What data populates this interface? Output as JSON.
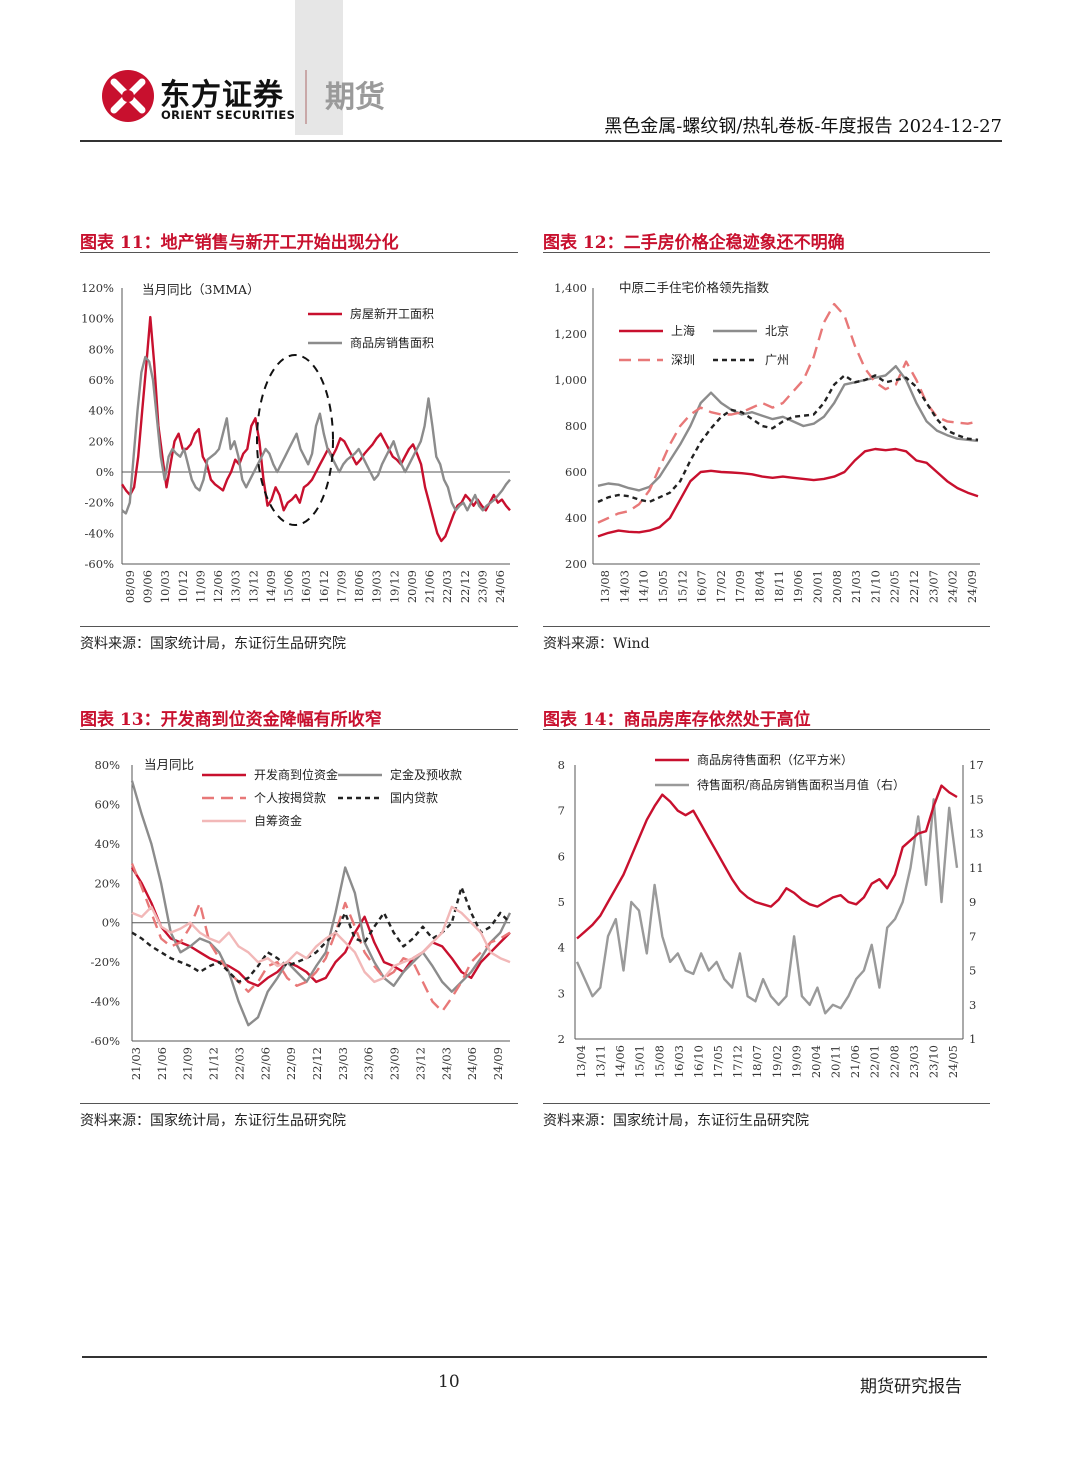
{
  "header": {
    "brand_cn": "东方证券",
    "brand_en": "ORIENT SECURITIES",
    "brand_division": "期货",
    "report_title": "黑色金属-螺纹钢/热轧卷板-年度报告 2024-12-27",
    "colors": {
      "accent": "#c8102e",
      "gray_bar": "#e6e6e6"
    }
  },
  "figures": [
    {
      "title": "图表 11：地产销售与新开工开始出现分化",
      "source": "资料来源：国家统计局，东证衍生品研究院"
    },
    {
      "title": "图表 12：二手房价格企稳迹象还不明确",
      "source": "资料来源：Wind"
    },
    {
      "title": "图表 13：开发商到位资金降幅有所收窄",
      "source": "资料来源：国家统计局，东证衍生品研究院"
    },
    {
      "title": "图表 14：商品房库存依然处于高位",
      "source": "资料来源：国家统计局，东证衍生品研究院"
    }
  ],
  "chart_data": [
    {
      "type": "line",
      "title": "当月同比（3MMA）",
      "x_ticks": [
        "08/09",
        "09/06",
        "10/03",
        "10/12",
        "11/09",
        "12/06",
        "13/03",
        "13/12",
        "14/09",
        "15/06",
        "16/03",
        "16/12",
        "17/09",
        "18/06",
        "19/03",
        "19/12",
        "20/09",
        "21/06",
        "22/03",
        "22/12",
        "23/09",
        "24/06"
      ],
      "ylim": [
        -60,
        120
      ],
      "y_ticks": [
        "120%",
        "100%",
        "80%",
        "60%",
        "40%",
        "20%",
        "0%",
        "-20%",
        "-40%",
        "-60%"
      ],
      "series": [
        {
          "name": "房屋新开工面积",
          "color": "#c8102e",
          "values": [
            -8,
            -12,
            -15,
            -10,
            10,
            40,
            70,
            101,
            70,
            30,
            10,
            -10,
            5,
            20,
            25,
            15,
            15,
            18,
            25,
            28,
            10,
            5,
            -5,
            -8,
            -10,
            -12,
            -5,
            0,
            8,
            5,
            12,
            15,
            30,
            35,
            20,
            -5,
            -22,
            -18,
            -10,
            -15,
            -25,
            -20,
            -18,
            -15,
            -20,
            -10,
            -8,
            -5,
            0,
            5,
            10,
            15,
            10,
            15,
            22,
            20,
            15,
            10,
            5,
            8,
            12,
            15,
            18,
            22,
            25,
            20,
            15,
            10,
            8,
            5,
            10,
            15,
            18,
            12,
            5,
            -10,
            -20,
            -30,
            -40,
            -45,
            -42,
            -35,
            -28,
            -22,
            -20,
            -15,
            -18,
            -22,
            -18,
            -22,
            -25,
            -20,
            -15,
            -20,
            -18,
            -22,
            -25
          ]
        },
        {
          "name": "商品房销售面积",
          "color": "#8c8c8c",
          "values": [
            -25,
            -27,
            -20,
            10,
            40,
            65,
            75,
            72,
            60,
            35,
            10,
            -5,
            10,
            15,
            12,
            10,
            15,
            5,
            -5,
            -10,
            -12,
            -5,
            8,
            10,
            12,
            15,
            25,
            35,
            15,
            20,
            10,
            -5,
            -10,
            -5,
            0,
            5,
            10,
            15,
            12,
            5,
            0,
            5,
            10,
            15,
            20,
            25,
            15,
            10,
            5,
            12,
            30,
            38,
            25,
            15,
            10,
            5,
            0,
            5,
            8,
            10,
            12,
            15,
            10,
            5,
            0,
            -5,
            -2,
            5,
            10,
            15,
            20,
            12,
            5,
            0,
            5,
            10,
            15,
            20,
            30,
            48,
            30,
            10,
            5,
            -5,
            -10,
            -20,
            -25,
            -22,
            -20,
            -25,
            -20,
            -15,
            -22,
            -25,
            -22,
            -20,
            -18,
            -15,
            -12,
            -8,
            -5
          ]
        }
      ]
    },
    {
      "type": "line",
      "title": "中原二手住宅价格领先指数",
      "x_ticks": [
        "13/08",
        "14/03",
        "14/10",
        "15/05",
        "15/12",
        "16/07",
        "17/02",
        "17/09",
        "18/04",
        "18/11",
        "19/06",
        "20/01",
        "20/08",
        "21/03",
        "21/10",
        "22/05",
        "22/12",
        "23/07",
        "24/02",
        "24/09"
      ],
      "ylim": [
        200,
        1400
      ],
      "y_ticks": [
        "1,400",
        "1,200",
        "1,000",
        "800",
        "600",
        "400",
        "200"
      ],
      "series": [
        {
          "name": "上海",
          "color": "#c8102e",
          "values": [
            320,
            335,
            345,
            340,
            338,
            345,
            360,
            400,
            480,
            560,
            600,
            605,
            600,
            598,
            595,
            590,
            580,
            575,
            580,
            575,
            570,
            565,
            570,
            580,
            600,
            650,
            690,
            700,
            695,
            700,
            690,
            650,
            640,
            600,
            560,
            530,
            510,
            495
          ]
        },
        {
          "name": "北京",
          "color": "#8c8c8c",
          "values": [
            540,
            550,
            545,
            530,
            520,
            535,
            580,
            650,
            720,
            800,
            900,
            945,
            900,
            870,
            850,
            860,
            845,
            830,
            840,
            820,
            800,
            810,
            840,
            900,
            980,
            990,
            1000,
            1010,
            1020,
            1060,
            1000,
            900,
            820,
            780,
            760,
            745,
            740,
            735
          ]
        },
        {
          "name": "深圳",
          "color": "#e87878",
          "values": [
            380,
            400,
            420,
            430,
            460,
            520,
            620,
            720,
            800,
            850,
            880,
            860,
            850,
            850,
            860,
            880,
            900,
            880,
            900,
            950,
            1000,
            1100,
            1250,
            1330,
            1280,
            1150,
            1050,
            990,
            960,
            980,
            1080,
            1000,
            900,
            840,
            820,
            815,
            810,
            820
          ]
        },
        {
          "name": "广州",
          "color": "#222222",
          "values": [
            470,
            490,
            500,
            495,
            480,
            470,
            490,
            510,
            560,
            650,
            730,
            790,
            840,
            870,
            860,
            830,
            800,
            790,
            820,
            840,
            845,
            850,
            900,
            980,
            1020,
            990,
            1000,
            1020,
            990,
            1000,
            1010,
            970,
            900,
            830,
            780,
            760,
            745,
            740
          ]
        }
      ]
    },
    {
      "type": "line",
      "title": "当月同比",
      "x_ticks": [
        "21/03",
        "21/06",
        "21/09",
        "21/12",
        "22/03",
        "22/06",
        "22/09",
        "22/12",
        "23/03",
        "23/06",
        "23/09",
        "23/12",
        "24/03",
        "24/06",
        "24/09"
      ],
      "ylim": [
        -60,
        80
      ],
      "y_ticks": [
        "80%",
        "60%",
        "40%",
        "20%",
        "0%",
        "-20%",
        "-40%",
        "-60%"
      ],
      "series": [
        {
          "name": "开发商到位资金",
          "color": "#c8102e",
          "values": [
            28,
            20,
            10,
            -2,
            -8,
            -10,
            -12,
            -15,
            -18,
            -20,
            -22,
            -25,
            -30,
            -32,
            -28,
            -25,
            -20,
            -22,
            -25,
            -30,
            -28,
            -20,
            -15,
            -5,
            3,
            -10,
            -20,
            -22,
            -25,
            -18,
            -15,
            -10,
            -12,
            -18,
            -25,
            -28,
            -20,
            -15,
            -10,
            -5
          ]
        },
        {
          "name": "定金及预收款",
          "color": "#8c8c8c",
          "values": [
            72,
            55,
            40,
            20,
            -5,
            -15,
            -12,
            -8,
            -10,
            -15,
            -25,
            -40,
            -52,
            -48,
            -35,
            -28,
            -20,
            -25,
            -30,
            -22,
            -15,
            5,
            28,
            15,
            -10,
            -20,
            -28,
            -32,
            -25,
            -20,
            -15,
            -22,
            -30,
            -35,
            -30,
            -25,
            -18,
            -10,
            -5,
            5
          ]
        },
        {
          "name": "个人按揭贷款",
          "color": "#e87878",
          "values": [
            30,
            18,
            5,
            -8,
            -12,
            -10,
            -2,
            10,
            -10,
            -18,
            -25,
            -30,
            -35,
            -30,
            -22,
            -20,
            -28,
            -32,
            -30,
            -25,
            -18,
            -5,
            10,
            -2,
            -15,
            -22,
            -28,
            -25,
            -18,
            -20,
            -30,
            -40,
            -45,
            -38,
            -30,
            -20,
            -15,
            -10,
            -8,
            -5
          ]
        },
        {
          "name": "国内贷款",
          "color": "#222222",
          "values": [
            -5,
            -8,
            -12,
            -15,
            -18,
            -20,
            -22,
            -25,
            -22,
            -20,
            -25,
            -30,
            -28,
            -22,
            -15,
            -18,
            -22,
            -20,
            -18,
            -15,
            -10,
            -5,
            5,
            -8,
            -10,
            -2,
            5,
            -5,
            -12,
            -8,
            -2,
            -8,
            -5,
            0,
            18,
            5,
            -5,
            -2,
            5,
            0
          ]
        },
        {
          "name": "自筹资金",
          "color": "#f2b8b8",
          "values": [
            5,
            3,
            8,
            -2,
            -5,
            -3,
            0,
            -5,
            -8,
            -10,
            -5,
            -12,
            -15,
            -20,
            -18,
            -22,
            -20,
            -15,
            -18,
            -12,
            -8,
            -5,
            -10,
            -15,
            -25,
            -30,
            -28,
            -22,
            -20,
            -18,
            -15,
            -10,
            -5,
            8,
            5,
            0,
            -5,
            -15,
            -18,
            -20
          ]
        }
      ]
    },
    {
      "type": "line",
      "title": "",
      "x_ticks": [
        "13/04",
        "13/11",
        "14/06",
        "15/01",
        "15/08",
        "16/03",
        "16/10",
        "17/05",
        "17/12",
        "18/07",
        "19/02",
        "19/09",
        "20/04",
        "20/11",
        "21/06",
        "22/01",
        "22/08",
        "23/03",
        "23/10",
        "24/05"
      ],
      "ylim_left": [
        2,
        8
      ],
      "ylim_right": [
        1,
        17
      ],
      "y_ticks_left": [
        "8",
        "7",
        "6",
        "5",
        "4",
        "3",
        "2"
      ],
      "y_ticks_right": [
        "17",
        "15",
        "13",
        "11",
        "9",
        "7",
        "5",
        "3",
        "1"
      ],
      "series": [
        {
          "name": "商品房待售面积（亿平方米）",
          "axis": "left",
          "color": "#c8102e",
          "values": [
            4.2,
            4.35,
            4.5,
            4.7,
            5.0,
            5.3,
            5.6,
            6.0,
            6.4,
            6.8,
            7.1,
            7.35,
            7.2,
            7.0,
            6.9,
            7.0,
            6.7,
            6.4,
            6.1,
            5.8,
            5.5,
            5.25,
            5.1,
            5.0,
            4.95,
            4.9,
            5.05,
            5.3,
            5.2,
            5.05,
            4.95,
            4.9,
            5.0,
            5.1,
            5.15,
            5.0,
            4.95,
            5.1,
            5.4,
            5.5,
            5.3,
            5.6,
            6.2,
            6.35,
            6.5,
            6.55,
            7.1,
            7.55,
            7.4,
            7.3
          ]
        },
        {
          "name": "待售面积/商品房销售面积当月值（右）",
          "axis": "right",
          "color": "#9a9a9a",
          "values": [
            5.5,
            4.5,
            3.5,
            4.0,
            7.0,
            8.0,
            5.0,
            9.0,
            8.5,
            6.0,
            10.0,
            7.0,
            5.5,
            6.0,
            5.0,
            4.8,
            6.0,
            5.0,
            5.5,
            4.5,
            4.0,
            6.0,
            3.5,
            3.2,
            4.5,
            3.5,
            3.0,
            3.5,
            7.0,
            3.5,
            3.0,
            4.0,
            2.5,
            3.0,
            2.8,
            3.5,
            4.5,
            5.0,
            6.5,
            4.0,
            7.5,
            8.0,
            9.0,
            11.0,
            14.0,
            10.0,
            15.0,
            9.0,
            14.5,
            11.0
          ]
        }
      ]
    }
  ],
  "legend_labels": {
    "c11": [
      "房屋新开工面积",
      "商品房销售面积"
    ],
    "c12": [
      "上海",
      "北京",
      "深圳",
      "广州"
    ],
    "c13": [
      "开发商到位资金",
      "定金及预收款",
      "个人按揭贷款",
      "国内贷款",
      "自筹资金"
    ],
    "c14": [
      "商品房待售面积（亿平方米）",
      "待售面积/商品房销售面积当月值（右）"
    ]
  },
  "annotation_c11": "dashed-ellipse-highlight",
  "footer": {
    "page_number": "10",
    "label": "期货研究报告"
  }
}
